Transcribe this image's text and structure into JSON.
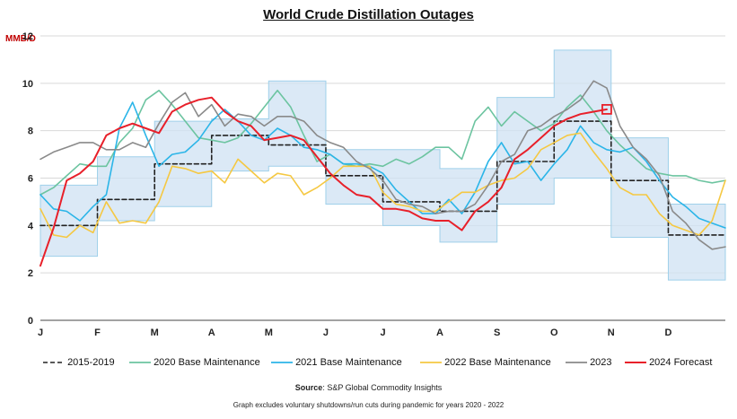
{
  "chart_data": {
    "type": "line",
    "title": "World Crude Distillation Outages",
    "ylabel": "MMB/D",
    "xlabel": "",
    "ylim": [
      0,
      12
    ],
    "yticks": [
      "0",
      "2",
      "4",
      "6",
      "8",
      "10",
      "12"
    ],
    "xlim": [
      0,
      52
    ],
    "xticks": [
      {
        "label": "J",
        "x": 0
      },
      {
        "label": "F",
        "x": 4.33
      },
      {
        "label": "M",
        "x": 8.67
      },
      {
        "label": "A",
        "x": 13
      },
      {
        "label": "M",
        "x": 17.33
      },
      {
        "label": "J",
        "x": 21.67
      },
      {
        "label": "J",
        "x": 26
      },
      {
        "label": "A",
        "x": 30.33
      },
      {
        "label": "S",
        "x": 34.67
      },
      {
        "label": "O",
        "x": 39
      },
      {
        "label": "N",
        "x": 43.33
      },
      {
        "label": "D",
        "x": 47.67
      }
    ],
    "grid": "horizontal",
    "legend_position": "bottom",
    "range_band": {
      "color": "#cfe2f3",
      "edge_color": "#9fd0ea",
      "segments": [
        {
          "x0": 0,
          "x1": 4.33,
          "low": 2.7,
          "high": 5.7
        },
        {
          "x0": 4.33,
          "x1": 8.67,
          "low": 4.2,
          "high": 6.9
        },
        {
          "x0": 8.67,
          "x1": 13,
          "low": 4.8,
          "high": 8.4
        },
        {
          "x0": 13,
          "x1": 17.33,
          "low": 6.3,
          "high": 8.5
        },
        {
          "x0": 17.33,
          "x1": 21.67,
          "low": 6.5,
          "high": 10.1
        },
        {
          "x0": 21.67,
          "x1": 26,
          "low": 4.9,
          "high": 7.2
        },
        {
          "x0": 26,
          "x1": 30.33,
          "low": 4.0,
          "high": 7.2
        },
        {
          "x0": 30.33,
          "x1": 34.67,
          "low": 3.3,
          "high": 6.4
        },
        {
          "x0": 34.67,
          "x1": 39,
          "low": 4.9,
          "high": 9.4
        },
        {
          "x0": 39,
          "x1": 43.33,
          "low": 6.0,
          "high": 11.4
        },
        {
          "x0": 43.33,
          "x1": 47.67,
          "low": 3.5,
          "high": 7.7
        },
        {
          "x0": 47.67,
          "x1": 52,
          "low": 1.7,
          "high": 4.9
        }
      ]
    },
    "series": [
      {
        "name": "2015-2019",
        "color": "#222222",
        "dash": "5,3",
        "width": 1.6,
        "step": true,
        "segments": [
          {
            "x0": 0,
            "x1": 4.33,
            "y": 4.0
          },
          {
            "x0": 4.33,
            "x1": 6.5,
            "y": 5.1
          },
          {
            "x0": 6.5,
            "x1": 8.67,
            "y": 5.1
          },
          {
            "x0": 8.67,
            "x1": 13,
            "y": 6.6
          },
          {
            "x0": 13,
            "x1": 17.33,
            "y": 7.8
          },
          {
            "x0": 17.33,
            "x1": 21.67,
            "y": 7.4
          },
          {
            "x0": 21.67,
            "x1": 26,
            "y": 6.1
          },
          {
            "x0": 26,
            "x1": 30.33,
            "y": 5.0
          },
          {
            "x0": 30.33,
            "x1": 34.67,
            "y": 4.6
          },
          {
            "x0": 34.67,
            "x1": 39,
            "y": 6.7
          },
          {
            "x0": 39,
            "x1": 43.33,
            "y": 8.4
          },
          {
            "x0": 43.33,
            "x1": 47.67,
            "y": 5.9
          },
          {
            "x0": 47.67,
            "x1": 52,
            "y": 3.6
          }
        ]
      },
      {
        "name": "2020 Base Maintenance",
        "color": "#6cc4a0",
        "width": 1.6,
        "x": [
          0,
          1,
          2,
          3,
          4,
          5,
          6,
          7,
          8,
          9,
          10,
          11,
          12,
          13,
          14,
          15,
          16,
          17,
          18,
          19,
          20,
          21,
          22,
          23,
          24,
          25,
          26,
          27,
          28,
          29,
          30,
          31,
          32,
          33,
          34,
          35,
          36,
          37,
          38,
          39,
          40,
          41,
          42,
          43,
          44,
          45,
          46,
          47,
          48,
          49,
          50,
          51,
          52
        ],
        "y": [
          5.3,
          5.6,
          6.1,
          6.6,
          6.5,
          6.5,
          7.5,
          8.1,
          9.3,
          9.7,
          9.1,
          8.4,
          7.7,
          7.6,
          7.5,
          7.7,
          8.3,
          9.0,
          9.7,
          9.0,
          7.8,
          6.7,
          7.0,
          6.6,
          6.5,
          6.6,
          6.5,
          6.8,
          6.6,
          6.9,
          7.3,
          7.3,
          6.8,
          8.4,
          9.0,
          8.2,
          8.8,
          8.4,
          8.0,
          8.3,
          9.0,
          9.5,
          8.8,
          8.0,
          7.4,
          6.9,
          6.4,
          6.2,
          6.1,
          6.1,
          5.9,
          5.8,
          5.9
        ]
      },
      {
        "name": "2021 Base Maintenance",
        "color": "#2bb5e8",
        "width": 1.6,
        "x": [
          0,
          1,
          2,
          3,
          4,
          5,
          6,
          7,
          8,
          9,
          10,
          11,
          12,
          13,
          14,
          15,
          16,
          17,
          18,
          19,
          20,
          21,
          22,
          23,
          24,
          25,
          26,
          27,
          28,
          29,
          30,
          31,
          32,
          33,
          34,
          35,
          36,
          37,
          38,
          39,
          40,
          41,
          42,
          43,
          44,
          45,
          46,
          47,
          48,
          49,
          50,
          51,
          52
        ],
        "y": [
          5.3,
          4.7,
          4.6,
          4.2,
          4.8,
          5.3,
          8.1,
          9.2,
          7.8,
          6.5,
          7.0,
          7.1,
          7.6,
          8.4,
          8.9,
          8.4,
          7.8,
          7.6,
          8.1,
          7.8,
          7.3,
          7.2,
          7.0,
          6.6,
          6.6,
          6.5,
          6.2,
          5.5,
          5.0,
          4.5,
          4.5,
          5.1,
          4.5,
          5.4,
          6.7,
          7.5,
          6.6,
          6.7,
          5.9,
          6.6,
          7.2,
          8.2,
          7.5,
          7.2,
          7.1,
          7.3,
          6.7,
          5.9,
          5.2,
          4.8,
          4.3,
          4.1,
          3.9
        ]
      },
      {
        "name": "2022 Base Maintenance",
        "color": "#f5c842",
        "width": 1.6,
        "x": [
          0,
          1,
          2,
          3,
          4,
          5,
          6,
          7,
          8,
          9,
          10,
          11,
          12,
          13,
          14,
          15,
          16,
          17,
          18,
          19,
          20,
          21,
          22,
          23,
          24,
          25,
          26,
          27,
          28,
          29,
          30,
          31,
          32,
          33,
          34,
          35,
          36,
          37,
          38,
          39,
          40,
          41,
          42,
          43,
          44,
          45,
          46,
          47,
          48,
          49,
          50,
          51,
          52
        ],
        "y": [
          4.7,
          3.6,
          3.5,
          4.0,
          3.7,
          5.0,
          4.1,
          4.2,
          4.1,
          5.0,
          6.5,
          6.4,
          6.2,
          6.3,
          5.8,
          6.8,
          6.3,
          5.8,
          6.2,
          6.1,
          5.3,
          5.6,
          6.0,
          6.5,
          6.5,
          6.5,
          5.4,
          4.9,
          4.8,
          4.6,
          4.6,
          5.0,
          5.4,
          5.4,
          5.7,
          5.9,
          6.0,
          6.4,
          7.2,
          7.5,
          7.8,
          7.9,
          7.1,
          6.4,
          5.6,
          5.3,
          5.3,
          4.5,
          4.0,
          3.8,
          3.6,
          4.2,
          5.9
        ]
      },
      {
        "name": "2023",
        "color": "#8a8a8a",
        "width": 1.6,
        "x": [
          0,
          1,
          2,
          3,
          4,
          5,
          6,
          7,
          8,
          9,
          10,
          11,
          12,
          13,
          14,
          15,
          16,
          17,
          18,
          19,
          20,
          21,
          22,
          23,
          24,
          25,
          26,
          27,
          28,
          29,
          30,
          31,
          32,
          33,
          34,
          35,
          36,
          37,
          38,
          39,
          40,
          41,
          42,
          43,
          44,
          45,
          46,
          47,
          48,
          49,
          50,
          51,
          52
        ],
        "y": [
          6.8,
          7.1,
          7.3,
          7.5,
          7.5,
          7.2,
          7.2,
          7.5,
          7.3,
          8.3,
          9.2,
          9.6,
          8.6,
          9.1,
          8.2,
          8.7,
          8.6,
          8.2,
          8.6,
          8.6,
          8.4,
          7.8,
          7.5,
          7.3,
          6.7,
          6.4,
          5.9,
          5.1,
          4.9,
          4.8,
          4.5,
          4.6,
          4.6,
          4.9,
          5.7,
          6.7,
          7.0,
          8.0,
          8.2,
          8.6,
          8.9,
          9.3,
          10.1,
          9.8,
          8.2,
          7.3,
          6.8,
          6.1,
          4.6,
          4.1,
          3.4,
          3.0,
          3.1
        ]
      },
      {
        "name": "2024 Forecast",
        "color": "#e8202a",
        "width": 2.0,
        "x": [
          0,
          1,
          2,
          3,
          4,
          5,
          6,
          7,
          8,
          9,
          10,
          11,
          12,
          13,
          14,
          15,
          16,
          17,
          18,
          19,
          20,
          21,
          22,
          23,
          24,
          25,
          26,
          27,
          28,
          29,
          30,
          31,
          32,
          33,
          34,
          35,
          36,
          37,
          38,
          39,
          40,
          41,
          42,
          43
        ],
        "y": [
          2.3,
          3.9,
          5.9,
          6.2,
          6.7,
          7.8,
          8.1,
          8.3,
          8.1,
          7.9,
          8.8,
          9.1,
          9.3,
          9.4,
          8.8,
          8.4,
          8.2,
          7.6,
          7.7,
          7.8,
          7.6,
          6.9,
          6.2,
          5.7,
          5.3,
          5.2,
          4.7,
          4.7,
          4.6,
          4.3,
          4.2,
          4.2,
          3.8,
          4.6,
          5.0,
          5.6,
          6.8,
          7.2,
          7.7,
          8.2,
          8.5,
          8.7,
          8.8,
          8.9
        ]
      }
    ],
    "marker": {
      "series": "2024 Forecast",
      "x": 43,
      "y": 8.9,
      "color": "#e8202a"
    }
  },
  "legend": {
    "items": [
      "2015-2019",
      "2020 Base Maintenance",
      "2021 Base Maintenance",
      "2022 Base Maintenance",
      "2023",
      "2024 Forecast"
    ]
  },
  "footer": {
    "source_label": "Source",
    "source_text": ": S&P Global Commodity Insights",
    "note": "Graph excludes voluntary shutdowns/run cuts during pandemic for years 2020 - 2022"
  }
}
